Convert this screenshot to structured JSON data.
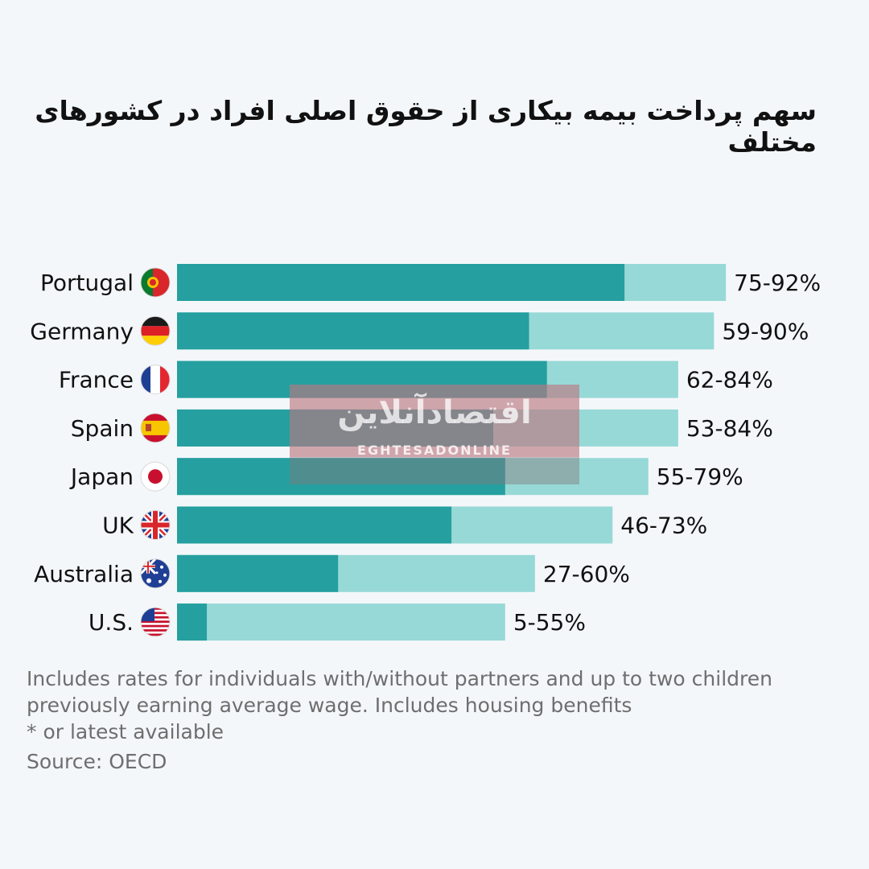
{
  "title": "سهم پرداخت بیمه بیکاری از حقوق اصلی افراد در کشورهای مختلف",
  "colors": {
    "min_bar": "#259f9f",
    "max_bar": "#97d9d6",
    "text": "#111111",
    "note": "#6e6e6e"
  },
  "chart_data": {
    "type": "bar",
    "orientation": "horizontal",
    "stacked_range": true,
    "categories": [
      "Portugal",
      "Germany",
      "France",
      "Spain",
      "Japan",
      "UK",
      "Australia",
      "U.S."
    ],
    "flags": [
      "portugal-flag-icon",
      "germany-flag-icon",
      "france-flag-icon",
      "spain-flag-icon",
      "japan-flag-icon",
      "uk-flag-icon",
      "australia-flag-icon",
      "us-flag-icon"
    ],
    "range_min": [
      75,
      59,
      62,
      53,
      55,
      46,
      27,
      5
    ],
    "range_max": [
      92,
      90,
      84,
      84,
      79,
      73,
      60,
      55
    ],
    "value_labels": [
      "75-92%",
      "59-90%",
      "62-84%",
      "53-84%",
      "55-79%",
      "46-73%",
      "27-60%",
      "5-55%"
    ],
    "xlim": [
      0,
      100
    ],
    "grid": false,
    "legend": "none"
  },
  "notes": [
    "Includes rates for individuals with/without partners and up to two children",
    "previously earning average wage. Includes housing benefits",
    "* or latest available"
  ],
  "source": "Source: OECD",
  "watermark": {
    "persian": "اقتصادآنلاین",
    "latin": "EGHTESADONLINE"
  }
}
